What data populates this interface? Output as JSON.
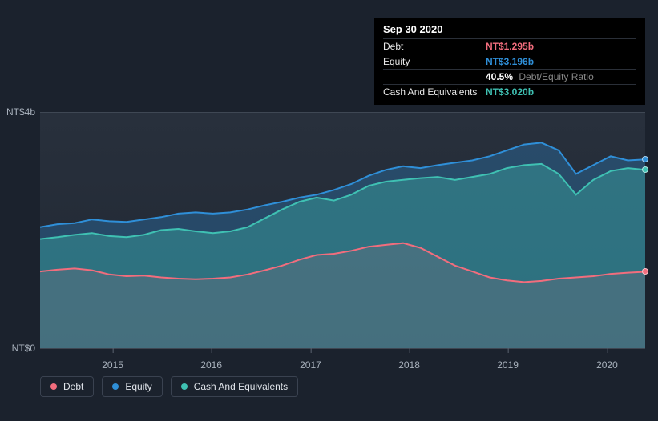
{
  "tooltip": {
    "date": "Sep 30 2020",
    "rows": [
      {
        "label": "Debt",
        "value": "NT$1.295b",
        "color": "#f26d7d"
      },
      {
        "label": "Equity",
        "value": "NT$3.196b",
        "color": "#2f8fd8"
      },
      {
        "label": "",
        "value": "40.5%",
        "sub": "Debt/Equity Ratio",
        "color": "#ffffff"
      },
      {
        "label": "Cash And Equivalents",
        "value": "NT$3.020b",
        "color": "#3fc1b3"
      }
    ]
  },
  "chart": {
    "type": "area",
    "y_max_label": "NT$4b",
    "y_min_label": "NT$0",
    "y_max": 4.0,
    "y_min": 0.0,
    "background_color": "#1b222d",
    "grid_color": "#3e4652",
    "label_color": "#a9b2bd",
    "label_fontsize": 12,
    "x_ticks": [
      "2015",
      "2016",
      "2017",
      "2018",
      "2019",
      "2020"
    ],
    "x_tick_positions": [
      0.12,
      0.283,
      0.447,
      0.61,
      0.773,
      0.937
    ],
    "series": {
      "debt": {
        "color": "#f26d7d",
        "fill_opacity": 0.12,
        "line_width": 2,
        "values": [
          1.3,
          1.33,
          1.35,
          1.32,
          1.25,
          1.22,
          1.23,
          1.2,
          1.18,
          1.17,
          1.18,
          1.2,
          1.25,
          1.32,
          1.4,
          1.5,
          1.58,
          1.6,
          1.65,
          1.72,
          1.75,
          1.78,
          1.7,
          1.55,
          1.4,
          1.3,
          1.2,
          1.15,
          1.12,
          1.14,
          1.18,
          1.2,
          1.22,
          1.26,
          1.28,
          1.295
        ]
      },
      "cash": {
        "color": "#3fc1b3",
        "fill_opacity": 0.35,
        "line_width": 2,
        "values": [
          1.85,
          1.88,
          1.92,
          1.95,
          1.9,
          1.88,
          1.92,
          2.0,
          2.02,
          1.98,
          1.95,
          1.98,
          2.05,
          2.2,
          2.35,
          2.48,
          2.55,
          2.5,
          2.6,
          2.75,
          2.82,
          2.85,
          2.88,
          2.9,
          2.85,
          2.9,
          2.95,
          3.05,
          3.1,
          3.12,
          2.95,
          2.6,
          2.85,
          3.0,
          3.05,
          3.02
        ]
      },
      "equity": {
        "color": "#2f8fd8",
        "fill_opacity": 0.3,
        "line_width": 2,
        "values": [
          2.05,
          2.1,
          2.12,
          2.18,
          2.15,
          2.14,
          2.18,
          2.22,
          2.28,
          2.3,
          2.28,
          2.3,
          2.35,
          2.42,
          2.48,
          2.55,
          2.6,
          2.68,
          2.78,
          2.92,
          3.02,
          3.08,
          3.05,
          3.1,
          3.14,
          3.18,
          3.25,
          3.35,
          3.45,
          3.48,
          3.35,
          2.95,
          3.1,
          3.25,
          3.18,
          3.196
        ]
      }
    },
    "end_markers": [
      {
        "series": "equity",
        "color": "#2f8fd8"
      },
      {
        "series": "cash",
        "color": "#3fc1b3"
      },
      {
        "series": "debt",
        "color": "#f26d7d"
      }
    ]
  },
  "legend": [
    {
      "label": "Debt",
      "color": "#f26d7d"
    },
    {
      "label": "Equity",
      "color": "#2f8fd8"
    },
    {
      "label": "Cash And Equivalents",
      "color": "#3fc1b3"
    }
  ]
}
